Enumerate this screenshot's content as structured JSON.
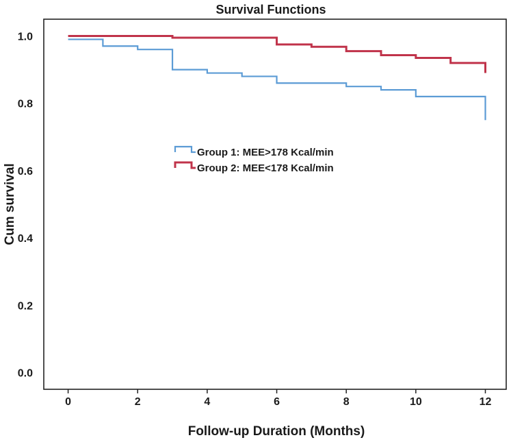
{
  "chart_data": {
    "type": "line",
    "title": "Survival Functions",
    "xlabel": "Follow-up Duration (Months)",
    "ylabel": "Cum survival",
    "xlim": [
      -0.7,
      12.6
    ],
    "ylim": [
      -0.05,
      1.05
    ],
    "x_ticks": [
      0,
      2,
      4,
      6,
      8,
      10,
      12
    ],
    "y_ticks": [
      0.0,
      0.2,
      0.4,
      0.6,
      0.8,
      1.0
    ],
    "x_tick_labels": [
      "0",
      "2",
      "4",
      "6",
      "8",
      "10",
      "12"
    ],
    "y_tick_labels": [
      "0.0",
      "0.2",
      "0.4",
      "0.6",
      "0.8",
      "1.0"
    ],
    "grid": false,
    "legend_position": "center-left",
    "series": [
      {
        "name": "Group 1: MEE>178 Kcal/min",
        "color": "#5b9bd5",
        "style": "step",
        "x": [
          0,
          1,
          2,
          3,
          4,
          5,
          6,
          8,
          9,
          10,
          12,
          12
        ],
        "y": [
          0.99,
          0.97,
          0.96,
          0.9,
          0.89,
          0.88,
          0.86,
          0.85,
          0.84,
          0.82,
          0.82,
          0.75
        ]
      },
      {
        "name": "Group 2: MEE<178 Kcal/min",
        "color": "#c0334a",
        "style": "step",
        "x": [
          0,
          3,
          6,
          7,
          8,
          9,
          10,
          11,
          12,
          12
        ],
        "y": [
          1.0,
          0.995,
          0.975,
          0.968,
          0.955,
          0.943,
          0.935,
          0.92,
          0.92,
          0.89
        ]
      }
    ]
  }
}
